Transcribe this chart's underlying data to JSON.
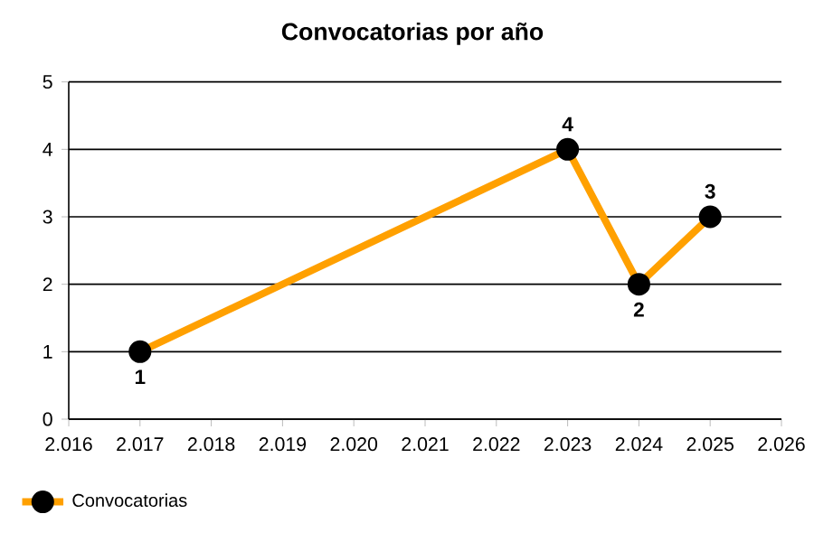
{
  "chart_data": {
    "type": "line",
    "title": "Convocatorias por año",
    "x": [
      2017,
      2023,
      2024,
      2025
    ],
    "series": [
      {
        "name": "Convocatorias",
        "color": "#ffa000",
        "values": [
          1,
          4,
          2,
          3
        ]
      }
    ],
    "xlim": [
      2016,
      2026
    ],
    "xticks": [
      {
        "value": 2016,
        "label": "2.016"
      },
      {
        "value": 2017,
        "label": "2.017"
      },
      {
        "value": 2018,
        "label": "2.018"
      },
      {
        "value": 2019,
        "label": "2.019"
      },
      {
        "value": 2020,
        "label": "2.020"
      },
      {
        "value": 2021,
        "label": "2.021"
      },
      {
        "value": 2022,
        "label": "2.022"
      },
      {
        "value": 2023,
        "label": "2.023"
      },
      {
        "value": 2024,
        "label": "2.024"
      },
      {
        "value": 2025,
        "label": "2.025"
      },
      {
        "value": 2026,
        "label": "2.026"
      }
    ],
    "ylim": [
      0,
      5
    ],
    "yticks": [
      0,
      1,
      2,
      3,
      4,
      5
    ],
    "grid": "y",
    "legend": "bottom left",
    "marker": "circle",
    "line_style": "solid",
    "data_labels": true
  }
}
